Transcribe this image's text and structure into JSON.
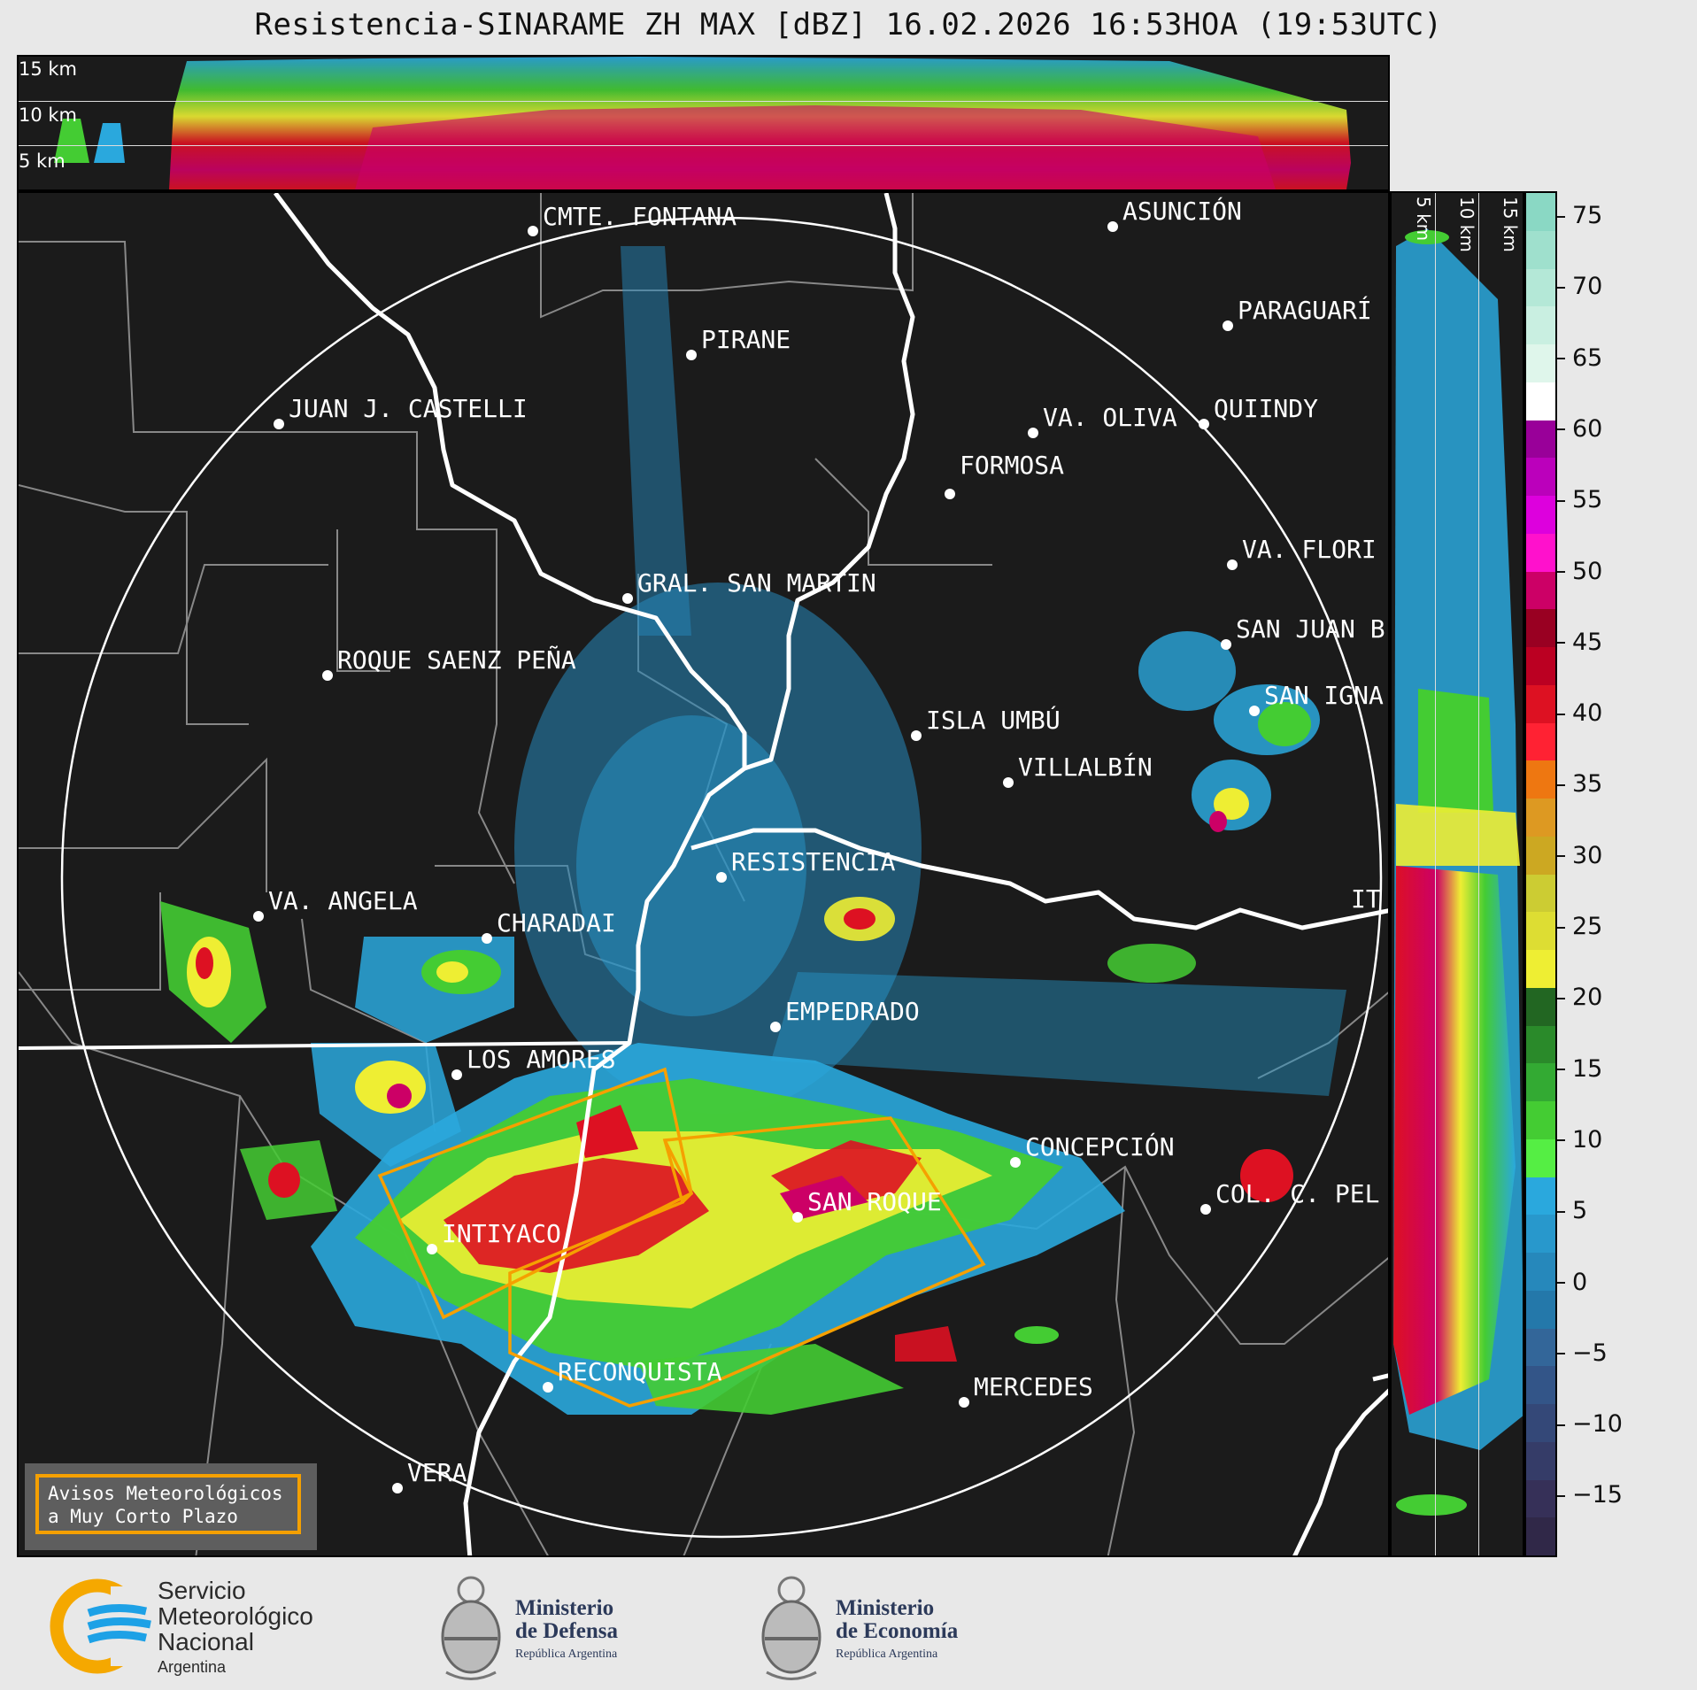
{
  "title": "Resistencia-SINARAME ZH MAX [dBZ] 16.02.2026 16:53HOA (19:53UTC)",
  "top_profile": {
    "labels": [
      "15 km",
      "10 km",
      "5 km"
    ]
  },
  "side_profile": {
    "labels": [
      "5 km",
      "10 km",
      "15 km"
    ]
  },
  "colorbar": {
    "ticks": [
      "75",
      "70",
      "65",
      "60",
      "55",
      "50",
      "45",
      "40",
      "35",
      "30",
      "25",
      "20",
      "15",
      "10",
      "5",
      "0",
      "−5",
      "−10",
      "−15"
    ],
    "colors": [
      "#8ad8c4",
      "#9fe0cd",
      "#b4e8d7",
      "#c9efe1",
      "#dff6eb",
      "#ffffff",
      "#990099",
      "#bb00bb",
      "#dd00dd",
      "#ff11cc",
      "#cc0066",
      "#990022",
      "#bb0022",
      "#dd1122",
      "#ff2233",
      "#ee7711",
      "#dd9922",
      "#cca822",
      "#cccc33",
      "#dddd33",
      "#eeee33",
      "#226622",
      "#2a8a2a",
      "#33aa33",
      "#44cc33",
      "#55ee44",
      "#2aa8dd",
      "#2898cc",
      "#2688bb",
      "#2478aa",
      "#336699",
      "#335588",
      "#344878",
      "#353c68",
      "#363058",
      "#302848"
    ]
  },
  "cities": [
    {
      "name": "CMTE. FONTANA"
    },
    {
      "name": "ASUNCIÓN"
    },
    {
      "name": "PIRANE"
    },
    {
      "name": "PARAGUARÍ"
    },
    {
      "name": "JUAN J. CASTELLI"
    },
    {
      "name": "QUIINDY"
    },
    {
      "name": "VA. OLIVA"
    },
    {
      "name": "FORMOSA"
    },
    {
      "name": "VA. FLORI"
    },
    {
      "name": "GRAL. SAN MARTIN"
    },
    {
      "name": "SAN JUAN B"
    },
    {
      "name": "ROQUE SAENZ PEÑA"
    },
    {
      "name": "SAN IGNA"
    },
    {
      "name": "ISLA UMBÚ"
    },
    {
      "name": "VILLALBÍN"
    },
    {
      "name": "RESISTENCIA"
    },
    {
      "name": "VA. ANGELA"
    },
    {
      "name": "CHARADAI"
    },
    {
      "name": "IT"
    },
    {
      "name": "EMPEDRADO"
    },
    {
      "name": "LOS AMORES"
    },
    {
      "name": "CONCEPCIÓN"
    },
    {
      "name": "SAN ROQUE"
    },
    {
      "name": "COL. C. PEL"
    },
    {
      "name": "INTIYACO"
    },
    {
      "name": "RECONQUISTA"
    },
    {
      "name": "MERCEDES"
    },
    {
      "name": "VERA"
    }
  ],
  "warning_box": {
    "line1": "Avisos Meteorológicos",
    "line2": "a Muy Corto Plazo"
  },
  "footer": {
    "smn": {
      "line1": "Servicio",
      "line2": "Meteorológico",
      "line3": "Nacional",
      "line4": "Argentina"
    },
    "defensa": {
      "line1": "Ministerio",
      "line2": "de Defensa",
      "line3": "República Argentina"
    },
    "economia": {
      "line1": "Ministerio",
      "line2": "de Economía",
      "line3": "República Argentina"
    }
  }
}
